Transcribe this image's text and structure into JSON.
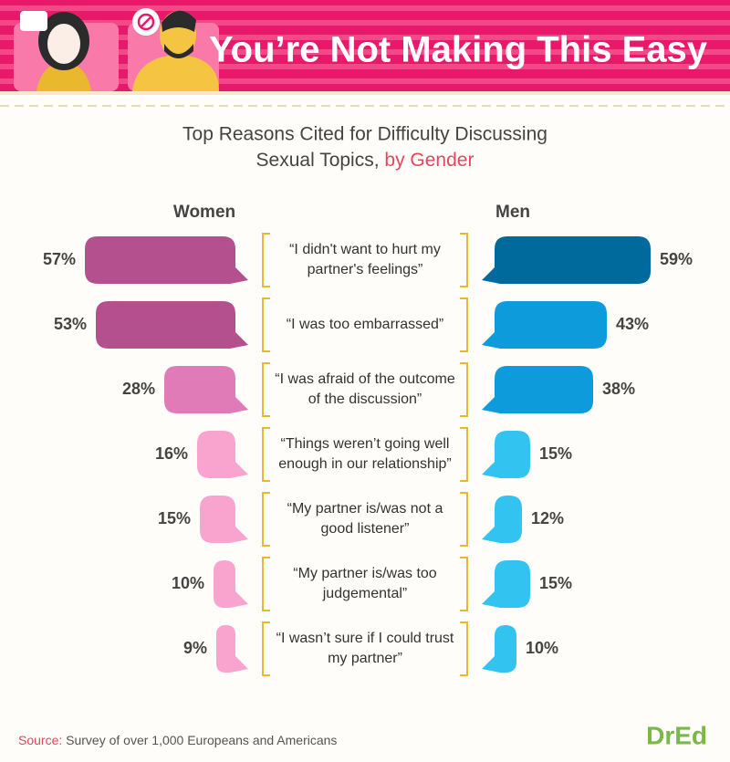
{
  "chart_data": {
    "type": "butterfly",
    "title": "You’re Not Making This Easy",
    "subtitle_lines": [
      "Top Reasons Cited for Difficulty Discussing",
      "Sexual Topics,"
    ],
    "subtitle_emphasis": "by Gender",
    "categories": [
      "“I didn't want to hurt my partner's feelings”",
      "“I was too embarrassed”",
      "“I was afraid of the outcome of the discussion”",
      "“Things weren’t going well enough in our relationship”",
      "“My partner is/was not a good listener”",
      "“My partner is/was too judgemental”",
      "“I wasn’t sure if I could trust my partner”"
    ],
    "series": [
      {
        "name": "Women",
        "values": [
          57,
          53,
          28,
          16,
          15,
          10,
          9
        ],
        "value_labels": [
          "57%",
          "53%",
          "28%",
          "16%",
          "15%",
          "10%",
          "9%"
        ],
        "colors": [
          "#b5508f",
          "#b5508f",
          "#e07bb8",
          "#f9a3cf",
          "#f9a3cf",
          "#f9a3cf",
          "#f9a3cf"
        ]
      },
      {
        "name": "Men",
        "values": [
          59,
          43,
          38,
          15,
          12,
          15,
          10
        ],
        "value_labels": [
          "59%",
          "43%",
          "38%",
          "15%",
          "12%",
          "15%",
          "10%"
        ],
        "colors": [
          "#006a9c",
          "#0d9bdc",
          "#0d9bdc",
          "#33c3f0",
          "#33c3f0",
          "#33c3f0",
          "#33c3f0"
        ]
      }
    ],
    "source_label": "Source:",
    "source": "Survey of over 1,000 Europeans and Americans",
    "logo": "DrEd"
  }
}
